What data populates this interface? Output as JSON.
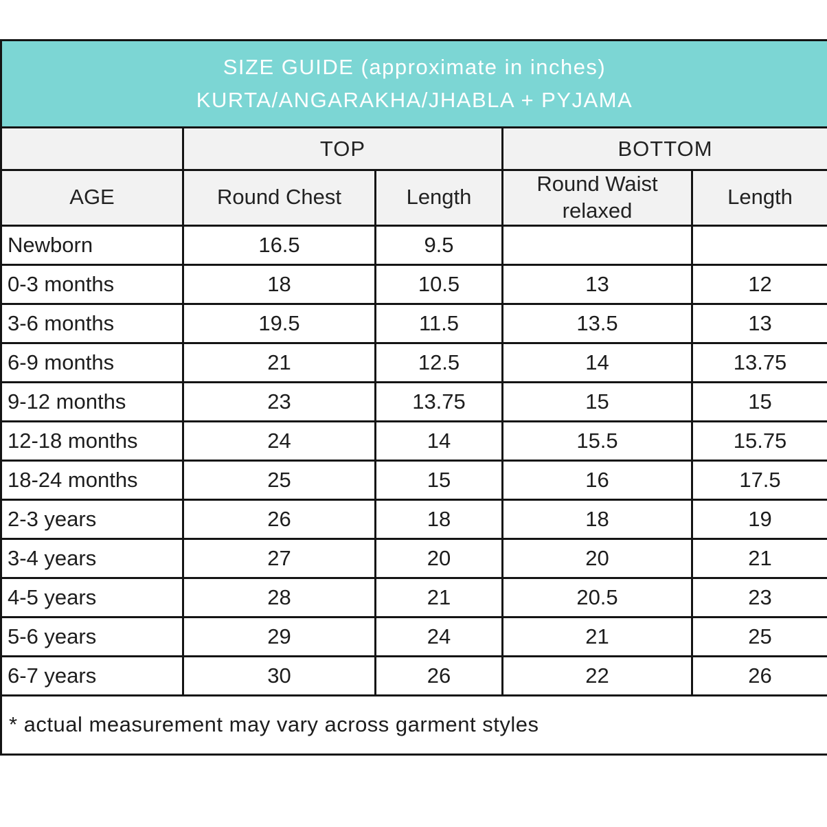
{
  "header": {
    "title_line1": "SIZE GUIDE (approximate in inches)",
    "title_line2": "KURTA/ANGARAKHA/JHABLA + PYJAMA",
    "bg_color": "#7cd6d4",
    "text_color": "#ffffff"
  },
  "table": {
    "group_headers": [
      {
        "label": "TOP",
        "span": 2
      },
      {
        "label": "BOTTOM",
        "span": 2
      }
    ],
    "columns": [
      "AGE",
      "Round Chest",
      "Length",
      "Round Waist relaxed",
      "Length"
    ],
    "rows": [
      {
        "age": "Newborn",
        "values": [
          "16.5",
          "9.5",
          "",
          ""
        ]
      },
      {
        "age": "0-3 months",
        "values": [
          "18",
          "10.5",
          "13",
          "12"
        ]
      },
      {
        "age": "3-6 months",
        "values": [
          "19.5",
          "11.5",
          "13.5",
          "13"
        ]
      },
      {
        "age": "6-9 months",
        "values": [
          "21",
          "12.5",
          "14",
          "13.75"
        ]
      },
      {
        "age": "9-12 months",
        "values": [
          "23",
          "13.75",
          "15",
          "15"
        ]
      },
      {
        "age": "12-18 months",
        "values": [
          "24",
          "14",
          "15.5",
          "15.75"
        ]
      },
      {
        "age": "18-24 months",
        "values": [
          "25",
          "15",
          "16",
          "17.5"
        ]
      },
      {
        "age": "2-3 years",
        "values": [
          "26",
          "18",
          "18",
          "19"
        ]
      },
      {
        "age": "3-4 years",
        "values": [
          "27",
          "20",
          "20",
          "21"
        ]
      },
      {
        "age": "4-5 years",
        "values": [
          "28",
          "21",
          "20.5",
          "23"
        ]
      },
      {
        "age": "5-6 years",
        "values": [
          "29",
          "24",
          "21",
          "25"
        ]
      },
      {
        "age": "6-7 years",
        "values": [
          "30",
          "26",
          "22",
          "26"
        ]
      }
    ],
    "footnote": "* actual measurement may vary across garment styles"
  },
  "colors": {
    "header_bg": "#7cd6d4",
    "header_text": "#ffffff",
    "subheader_bg": "#f2f2f2",
    "border": "#141414",
    "body_text": "#1d1d1d"
  },
  "chart_data": {
    "type": "table",
    "title": "SIZE GUIDE (approximate in inches) KURTA/ANGARAKHA/JHABLA + PYJAMA",
    "column_groups": [
      "",
      "TOP",
      "TOP",
      "BOTTOM",
      "BOTTOM"
    ],
    "columns": [
      "AGE",
      "Round Chest",
      "Length",
      "Round Waist relaxed",
      "Length"
    ],
    "rows": [
      [
        "Newborn",
        16.5,
        9.5,
        null,
        null
      ],
      [
        "0-3 months",
        18,
        10.5,
        13,
        12
      ],
      [
        "3-6 months",
        19.5,
        11.5,
        13.5,
        13
      ],
      [
        "6-9 months",
        21,
        12.5,
        14,
        13.75
      ],
      [
        "9-12 months",
        23,
        13.75,
        15,
        15
      ],
      [
        "12-18 months",
        24,
        14,
        15.5,
        15.75
      ],
      [
        "18-24 months",
        25,
        15,
        16,
        17.5
      ],
      [
        "2-3 years",
        26,
        18,
        18,
        19
      ],
      [
        "3-4 years",
        27,
        20,
        20,
        21
      ],
      [
        "4-5 years",
        28,
        21,
        20.5,
        23
      ],
      [
        "5-6 years",
        29,
        24,
        21,
        25
      ],
      [
        "6-7 years",
        30,
        26,
        22,
        26
      ]
    ],
    "footnote": "* actual measurement may vary across garment styles"
  }
}
